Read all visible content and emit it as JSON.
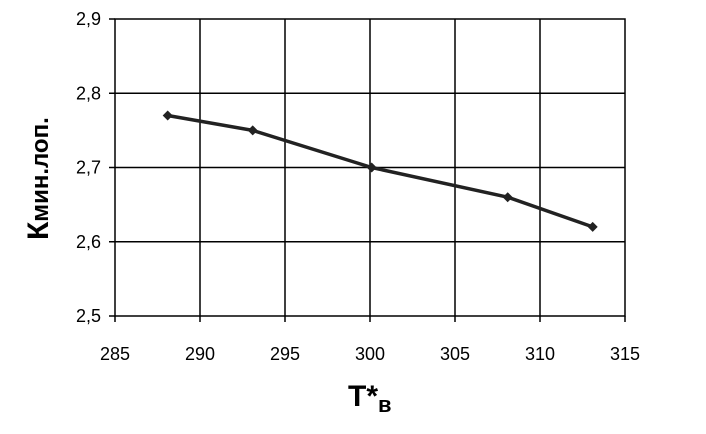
{
  "chart_data": {
    "type": "line",
    "title": "",
    "xlabel": {
      "main": "T*",
      "sub": "в"
    },
    "ylabel": {
      "main": "К",
      "sub": "мин.лоп."
    },
    "xlim": [
      285,
      315
    ],
    "ylim": [
      2.5,
      2.9
    ],
    "x_ticks": [
      "285",
      "290",
      "295",
      "300",
      "305",
      "310",
      "315"
    ],
    "y_ticks": [
      "2,5",
      "2,6",
      "2,7",
      "2,8",
      "2,9"
    ],
    "grid": true,
    "legend": "none",
    "series": [
      {
        "x": [
          288.1,
          293.1,
          300.1,
          308.1,
          313.1
        ],
        "values": [
          2.77,
          2.75,
          2.7,
          2.66,
          2.62
        ],
        "color": "#222222",
        "marker": "diamond"
      }
    ]
  }
}
